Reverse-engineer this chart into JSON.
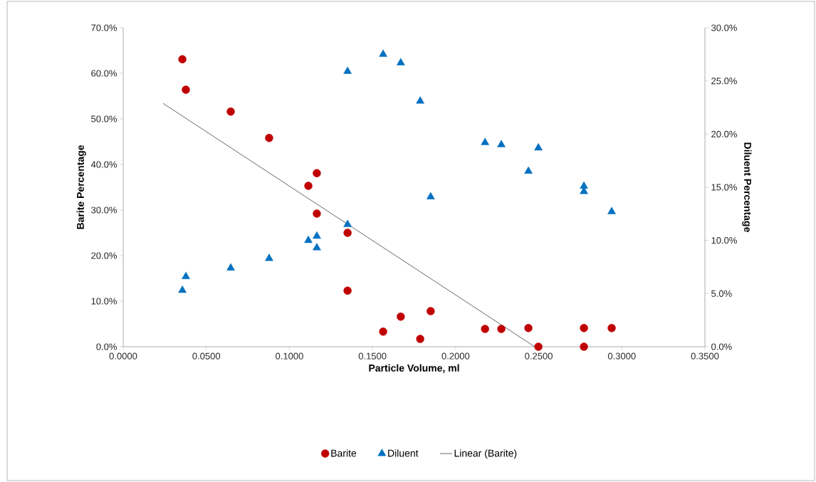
{
  "chart_data": {
    "type": "scatter",
    "xlabel": "Particle Volume, ml",
    "ylabel": "Barite Percentage",
    "y2label": "Diluent Percentage",
    "xlim": [
      0,
      0.35
    ],
    "xticks": [
      {
        "value": 0,
        "label": "0.0000"
      },
      {
        "value": 0.05,
        "label": "0.0500"
      },
      {
        "value": 0.1,
        "label": "0.1000"
      },
      {
        "value": 0.15,
        "label": "0.1500"
      },
      {
        "value": 0.2,
        "label": "0.2000"
      },
      {
        "value": 0.25,
        "label": "0.2500"
      },
      {
        "value": 0.3,
        "label": "0.3000"
      },
      {
        "value": 0.35,
        "label": "0.3500"
      }
    ],
    "ylim": [
      0,
      70
    ],
    "yticks": [
      {
        "value": 0,
        "label": "0.0%"
      },
      {
        "value": 10,
        "label": "10.0%"
      },
      {
        "value": 20,
        "label": "20.0%"
      },
      {
        "value": 30,
        "label": "30.0%"
      },
      {
        "value": 40,
        "label": "40.0%"
      },
      {
        "value": 50,
        "label": "50.0%"
      },
      {
        "value": 60,
        "label": "60.0%"
      },
      {
        "value": 70,
        "label": "70.0%"
      }
    ],
    "y2lim": [
      0,
      30
    ],
    "y2ticks": [
      {
        "value": 0,
        "label": "0.0%"
      },
      {
        "value": 5,
        "label": "5.0%"
      },
      {
        "value": 10,
        "label": "10.0%"
      },
      {
        "value": 15,
        "label": "15.0%"
      },
      {
        "value": 20,
        "label": "20.0%"
      },
      {
        "value": 25,
        "label": "25.0%"
      },
      {
        "value": 30,
        "label": "30.0%"
      }
    ],
    "grid": false,
    "legend": "bottom",
    "series": [
      {
        "name": "Barite",
        "color": "#c00000",
        "marker": "circle",
        "x": [
          0.0356,
          0.0377,
          0.0647,
          0.0878,
          0.1165,
          0.1114,
          0.1165,
          0.135,
          0.135,
          0.1564,
          0.167,
          0.1787,
          0.185,
          0.2177,
          0.2275,
          0.2438,
          0.2498,
          0.2772,
          0.2772,
          0.2939
        ],
        "values": [
          63.1,
          56.4,
          51.6,
          45.8,
          38.1,
          35.3,
          29.2,
          25.0,
          12.3,
          3.3,
          6.6,
          1.7,
          7.8,
          3.9,
          3.9,
          4.1,
          0,
          4.1,
          0,
          4.1
        ]
      },
      {
        "name": "Diluent",
        "color": "#0070c0",
        "marker": "triangle",
        "axis": "y2",
        "x": [
          0.0356,
          0.0377,
          0.0647,
          0.0878,
          0.1114,
          0.1165,
          0.1165,
          0.135,
          0.135,
          0.1564,
          0.167,
          0.1787,
          0.185,
          0.2177,
          0.2275,
          0.2438,
          0.2498,
          0.2772,
          0.2772,
          0.2939
        ],
        "values": [
          5.3,
          6.6,
          7.4,
          8.3,
          10.0,
          10.4,
          9.3,
          11.5,
          25.9,
          27.5,
          26.7,
          23.1,
          14.1,
          19.2,
          19.0,
          16.5,
          18.7,
          15.1,
          14.6,
          12.7
        ]
      },
      {
        "name": "Linear (Barite)",
        "type": "line",
        "color": "#404040",
        "marker": "none",
        "line_style": "solid",
        "x": [
          0.024,
          0.2476
        ],
        "values": [
          53.4,
          0
        ]
      }
    ]
  }
}
